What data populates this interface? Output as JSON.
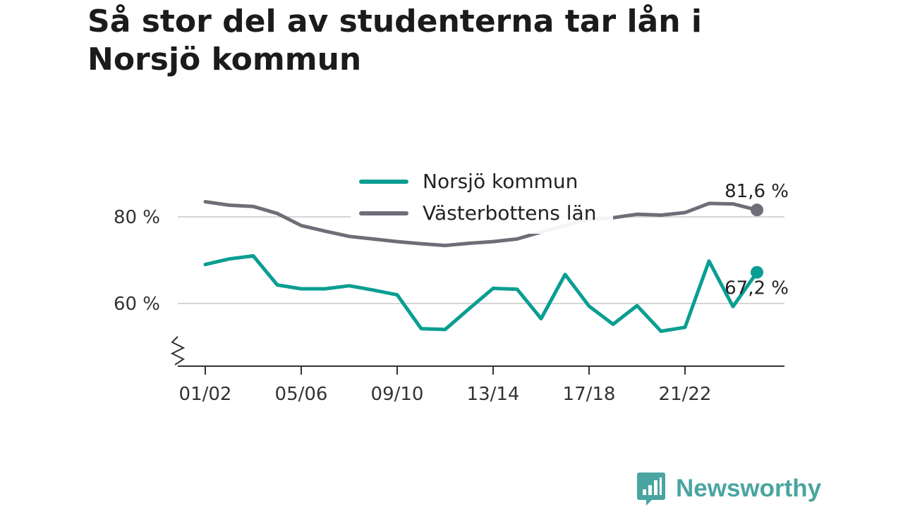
{
  "title": "Så stor del av studenterna tar lån i Norsjö kommun",
  "brand": {
    "name": "Newsworthy",
    "icon": "newsworthy-logo-icon",
    "color": "#4aa5a0"
  },
  "chart_data": {
    "type": "line",
    "x": [
      "01/02",
      "02/03",
      "03/04",
      "04/05",
      "05/06",
      "06/07",
      "07/08",
      "08/09",
      "09/10",
      "10/11",
      "11/12",
      "12/13",
      "13/14",
      "14/15",
      "15/16",
      "16/17",
      "17/18",
      "18/19",
      "19/20",
      "20/21",
      "21/22",
      "22/23",
      "23/24",
      "24/25"
    ],
    "x_tick_labels": [
      "01/02",
      "05/06",
      "09/10",
      "13/14",
      "17/18",
      "21/22"
    ],
    "y_ticks": [
      60,
      80
    ],
    "y_tick_labels": [
      "60 %",
      "80 %"
    ],
    "ylim": [
      46,
      88
    ],
    "y_axis_break": true,
    "grid": true,
    "legend_position": "top-center",
    "series": [
      {
        "name": "Norsjö kommun",
        "color": "#0a9e92",
        "values": [
          69.0,
          70.3,
          71.0,
          64.3,
          63.4,
          63.4,
          64.1,
          63.1,
          62.0,
          54.2,
          54.0,
          58.8,
          63.5,
          63.3,
          56.5,
          66.7,
          59.4,
          55.2,
          59.5,
          53.6,
          54.5,
          69.8,
          59.3,
          67.2
        ],
        "end_label": "67,2 %"
      },
      {
        "name": "Västerbottens län",
        "color": "#6e6e78",
        "values": [
          83.5,
          82.7,
          82.4,
          80.8,
          78.0,
          76.7,
          75.5,
          74.9,
          74.3,
          73.8,
          73.4,
          73.9,
          74.3,
          74.9,
          76.5,
          78.0,
          79.4,
          79.8,
          80.6,
          80.4,
          81.0,
          83.1,
          83.0,
          81.6
        ],
        "end_label": "81,6 %"
      }
    ]
  }
}
